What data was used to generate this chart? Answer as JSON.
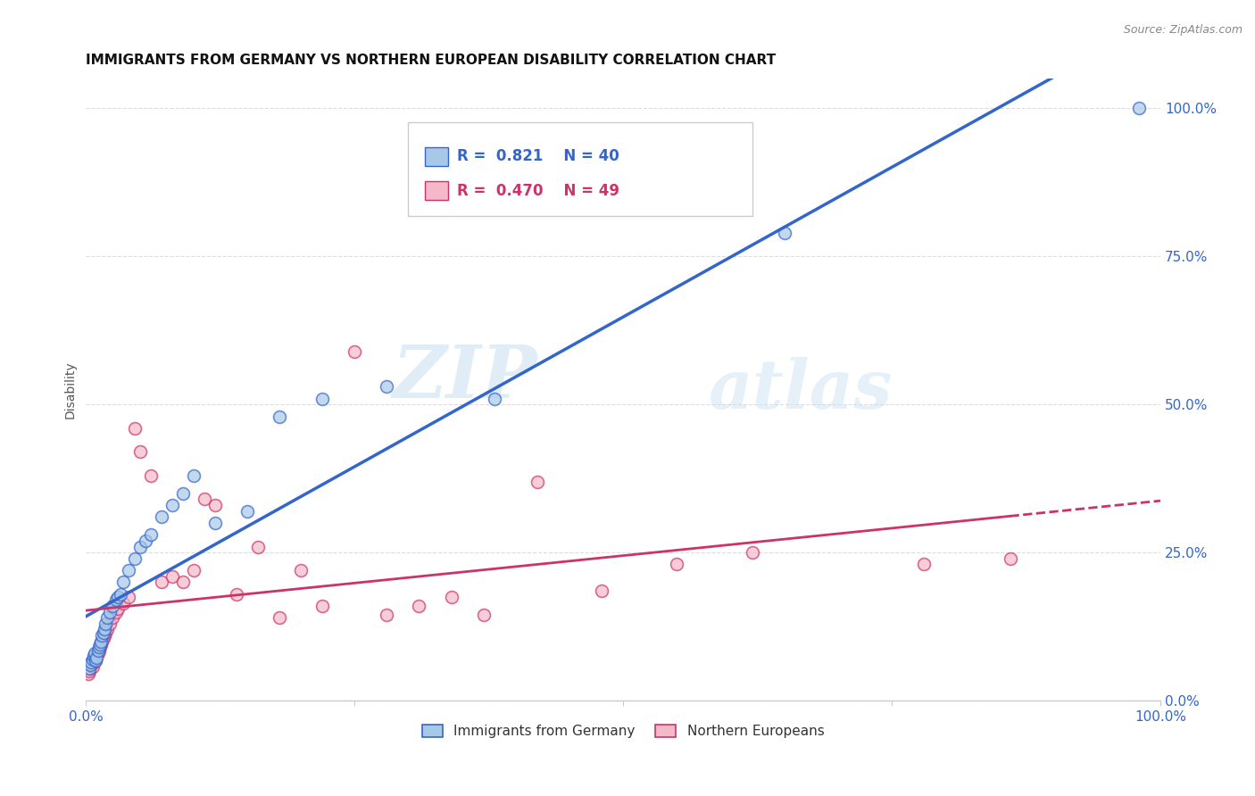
{
  "title": "IMMIGRANTS FROM GERMANY VS NORTHERN EUROPEAN DISABILITY CORRELATION CHART",
  "source": "Source: ZipAtlas.com",
  "ylabel": "Disability",
  "blue_R": "0.821",
  "blue_N": "40",
  "pink_R": "0.470",
  "pink_N": "49",
  "blue_color": "#a8c8e8",
  "pink_color": "#f4b8c8",
  "blue_line_color": "#3366cc",
  "pink_line_color": "#cc3366",
  "watermark_zip": "ZIP",
  "watermark_atlas": "atlas",
  "legend_label_blue": "Immigrants from Germany",
  "legend_label_pink": "Northern Europeans",
  "blue_scatter_x": [
    0.003,
    0.004,
    0.005,
    0.006,
    0.007,
    0.008,
    0.009,
    0.01,
    0.011,
    0.012,
    0.013,
    0.014,
    0.015,
    0.016,
    0.017,
    0.018,
    0.02,
    0.022,
    0.025,
    0.028,
    0.03,
    0.032,
    0.035,
    0.04,
    0.045,
    0.05,
    0.055,
    0.06,
    0.07,
    0.08,
    0.09,
    0.1,
    0.12,
    0.15,
    0.18,
    0.22,
    0.28,
    0.38,
    0.65,
    0.98
  ],
  "blue_scatter_y": [
    0.055,
    0.06,
    0.065,
    0.07,
    0.075,
    0.08,
    0.068,
    0.072,
    0.085,
    0.09,
    0.095,
    0.1,
    0.11,
    0.115,
    0.12,
    0.13,
    0.14,
    0.15,
    0.16,
    0.17,
    0.175,
    0.18,
    0.2,
    0.22,
    0.24,
    0.26,
    0.27,
    0.28,
    0.31,
    0.33,
    0.35,
    0.38,
    0.3,
    0.32,
    0.48,
    0.51,
    0.53,
    0.51,
    0.79,
    1.0
  ],
  "pink_scatter_x": [
    0.002,
    0.003,
    0.004,
    0.005,
    0.006,
    0.007,
    0.008,
    0.009,
    0.01,
    0.011,
    0.012,
    0.013,
    0.014,
    0.015,
    0.016,
    0.017,
    0.018,
    0.02,
    0.022,
    0.025,
    0.028,
    0.03,
    0.035,
    0.04,
    0.045,
    0.05,
    0.06,
    0.07,
    0.08,
    0.09,
    0.1,
    0.11,
    0.12,
    0.14,
    0.16,
    0.18,
    0.2,
    0.22,
    0.25,
    0.28,
    0.31,
    0.34,
    0.37,
    0.42,
    0.48,
    0.55,
    0.62,
    0.78,
    0.86
  ],
  "pink_scatter_y": [
    0.045,
    0.05,
    0.055,
    0.06,
    0.058,
    0.065,
    0.07,
    0.068,
    0.075,
    0.08,
    0.085,
    0.09,
    0.095,
    0.1,
    0.105,
    0.11,
    0.115,
    0.12,
    0.13,
    0.14,
    0.15,
    0.155,
    0.165,
    0.175,
    0.46,
    0.42,
    0.38,
    0.2,
    0.21,
    0.2,
    0.22,
    0.34,
    0.33,
    0.18,
    0.26,
    0.14,
    0.22,
    0.16,
    0.59,
    0.145,
    0.16,
    0.175,
    0.145,
    0.37,
    0.185,
    0.23,
    0.25,
    0.23,
    0.24
  ],
  "xlim": [
    0.0,
    1.0
  ],
  "ylim": [
    0.0,
    1.05
  ],
  "ytick_positions": [
    0.0,
    0.25,
    0.5,
    0.75,
    1.0
  ],
  "xtick_positions": [
    0.0,
    0.25,
    0.5,
    0.75,
    1.0
  ]
}
